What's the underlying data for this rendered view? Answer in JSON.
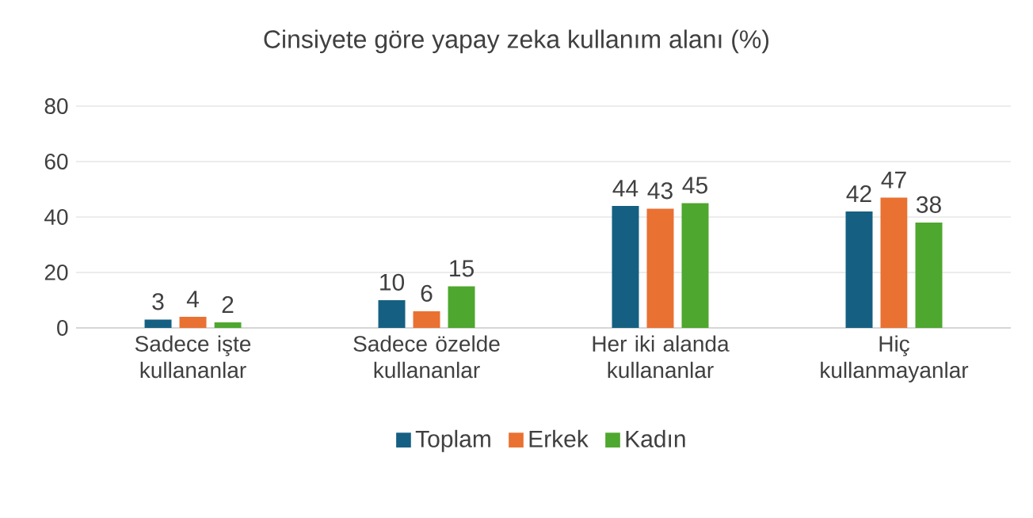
{
  "chart_data": {
    "type": "bar",
    "title": "Cinsiyete göre yapay zeka kullanım alanı (%)",
    "categories": [
      "Sadece işte kullananlar",
      "Sadece özelde kullananlar",
      "Her iki alanda kullananlar",
      "Hiç kullanmayanlar"
    ],
    "series": [
      {
        "name": "Toplam",
        "color": "#156082",
        "values": [
          3,
          10,
          44,
          42
        ]
      },
      {
        "name": "Erkek",
        "color": "#e97132",
        "values": [
          4,
          6,
          43,
          47
        ]
      },
      {
        "name": "Kadın",
        "color": "#4ea72e",
        "values": [
          2,
          15,
          45,
          38
        ]
      }
    ],
    "ylim": [
      0,
      80
    ],
    "yticks": [
      0,
      20,
      40,
      60,
      80
    ],
    "grid": "y",
    "legend": "bottom",
    "data_labels": true
  }
}
